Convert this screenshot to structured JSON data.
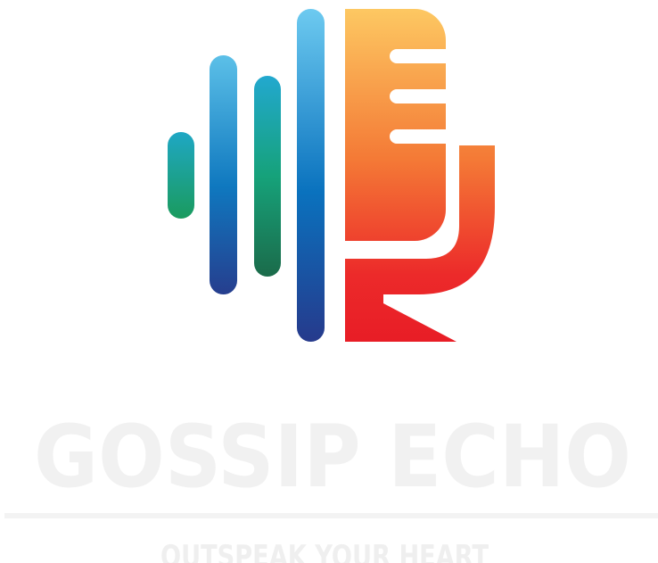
{
  "logo": {
    "title": "GOSSIP ECHO",
    "tagline": "OUTSPEAK YOUR HEART"
  }
}
